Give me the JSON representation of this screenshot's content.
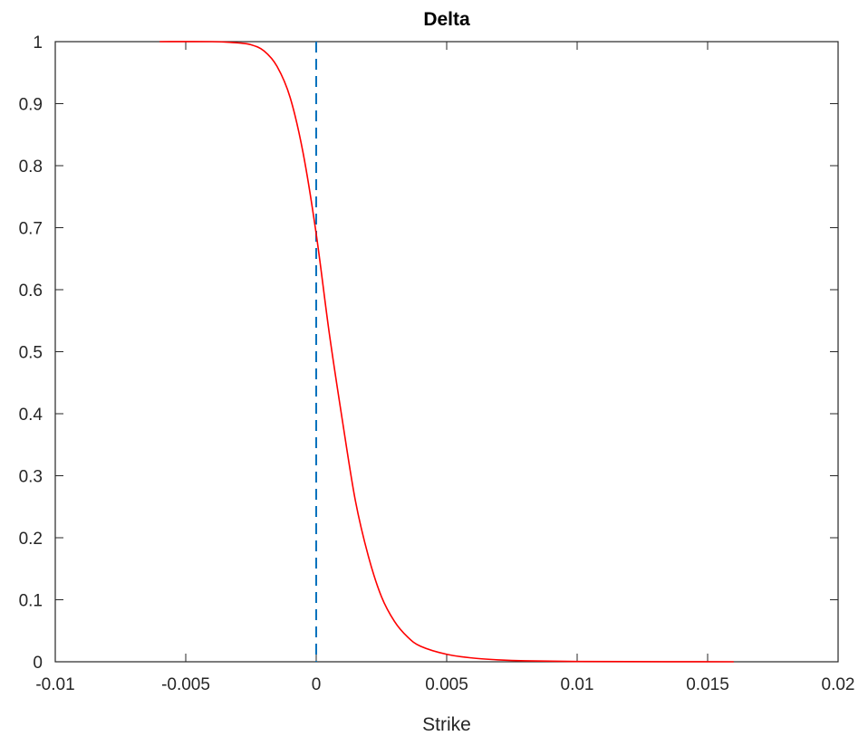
{
  "chart_data": {
    "type": "line",
    "title": "Delta",
    "xlabel": "Strike",
    "ylabel": "",
    "xlim": [
      -0.01,
      0.02
    ],
    "ylim": [
      0,
      1
    ],
    "x_ticks": [
      -0.01,
      -0.005,
      0,
      0.005,
      0.01,
      0.015,
      0.02
    ],
    "x_tick_labels": [
      "-0.01",
      "-0.005",
      "0",
      "0.005",
      "0.01",
      "0.015",
      "0.02"
    ],
    "y_ticks": [
      0,
      0.1,
      0.2,
      0.3,
      0.4,
      0.5,
      0.6,
      0.7,
      0.8,
      0.9,
      1
    ],
    "y_tick_labels": [
      "0",
      "0.1",
      "0.2",
      "0.3",
      "0.4",
      "0.5",
      "0.6",
      "0.7",
      "0.8",
      "0.9",
      "1"
    ],
    "grid": false,
    "series": [
      {
        "color": "#ff0000",
        "style": "solid",
        "x": [
          -0.006,
          -0.004,
          -0.003,
          -0.0025,
          -0.002,
          -0.0015,
          -0.001,
          -0.0005,
          0,
          0.0005,
          0.001,
          0.0015,
          0.002,
          0.0025,
          0.003,
          0.0035,
          0.004,
          0.005,
          0.006,
          0.007,
          0.008,
          0.01,
          0.012,
          0.014,
          0.016
        ],
        "y": [
          1.0,
          1.0,
          0.998,
          0.995,
          0.985,
          0.96,
          0.91,
          0.82,
          0.69,
          0.53,
          0.39,
          0.26,
          0.17,
          0.105,
          0.065,
          0.04,
          0.025,
          0.012,
          0.006,
          0.003,
          0.0015,
          0.0005,
          0.0002,
          0.0001,
          0.0
        ]
      }
    ],
    "reference_lines": [
      {
        "orientation": "vertical",
        "x": 0,
        "color": "#0072bd",
        "style": "dashed"
      }
    ]
  }
}
